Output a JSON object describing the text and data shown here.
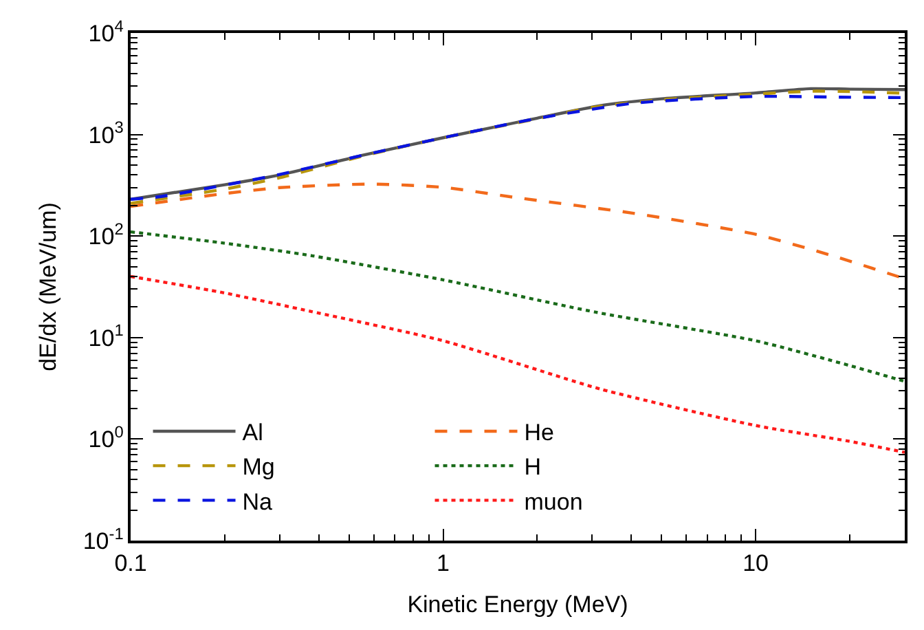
{
  "chart_data": {
    "type": "line",
    "xlabel": "Kinetic Energy (MeV)",
    "ylabel": "dE/dx (MeV/um)",
    "log": "xy",
    "xlim": [
      0.1,
      30
    ],
    "ylim": [
      0.1,
      10000
    ],
    "xticks": [
      0.1,
      1,
      10
    ],
    "yticks": [
      {
        "value": 0.1,
        "label": "10$^{-1}$"
      },
      {
        "value": 1,
        "label": "10$^{0}$"
      },
      {
        "value": 10,
        "label": "10$^{1}$"
      },
      {
        "value": 100,
        "label": "10$^{2}$"
      },
      {
        "value": 1000,
        "label": "10$^{3}$"
      },
      {
        "value": 10000,
        "label": "10$^{4}$"
      }
    ],
    "legend": "bottom left",
    "marker": "none",
    "series": [
      {
        "name": "Al",
        "color": "#555555",
        "line_style": "solid",
        "x": [
          0.1,
          0.2,
          0.3,
          0.56,
          1,
          2,
          3.2,
          5,
          10,
          15,
          20,
          30
        ],
        "values": [
          230,
          320,
          400,
          630,
          930,
          1450,
          1930,
          2250,
          2570,
          2830,
          2800,
          2770
        ]
      },
      {
        "name": "He",
        "color": "#f26a1b",
        "line_style": "dashed",
        "x": [
          0.1,
          0.19,
          0.3,
          0.59,
          1,
          1.7,
          4.1,
          10,
          17.6,
          30
        ],
        "values": [
          196,
          257,
          300,
          325,
          302,
          240,
          167,
          104,
          64,
          38
        ]
      },
      {
        "name": "Mg",
        "color": "#b8960c",
        "line_style": "dashed",
        "x": [
          0.1,
          0.2,
          0.3,
          0.56,
          1,
          2,
          3,
          5,
          10,
          15,
          20,
          30
        ],
        "values": [
          210,
          290,
          375,
          620,
          930,
          1430,
          1850,
          2200,
          2500,
          2670,
          2650,
          2550
        ]
      },
      {
        "name": "H",
        "color": "#1a6b1a",
        "line_style": "dotted",
        "x": [
          0.1,
          0.2,
          0.38,
          1,
          3.1,
          10,
          20,
          30
        ],
        "values": [
          110,
          85,
          64,
          37,
          17.7,
          9.3,
          5.3,
          3.7
        ]
      },
      {
        "name": "Na",
        "color": "#0a14e0",
        "line_style": "dashed",
        "x": [
          0.1,
          0.125,
          0.3,
          0.56,
          1,
          2,
          4.1,
          10,
          20,
          30
        ],
        "values": [
          230,
          245,
          405,
          630,
          930,
          1440,
          2040,
          2370,
          2330,
          2310
        ]
      },
      {
        "name": "muon",
        "color": "#ff1a1a",
        "line_style": "dotted",
        "x": [
          0.1,
          0.2,
          0.38,
          1,
          3.2,
          10,
          20,
          30
        ],
        "values": [
          40,
          27.5,
          18,
          9.3,
          3.1,
          1.36,
          0.95,
          0.74
        ]
      }
    ]
  }
}
